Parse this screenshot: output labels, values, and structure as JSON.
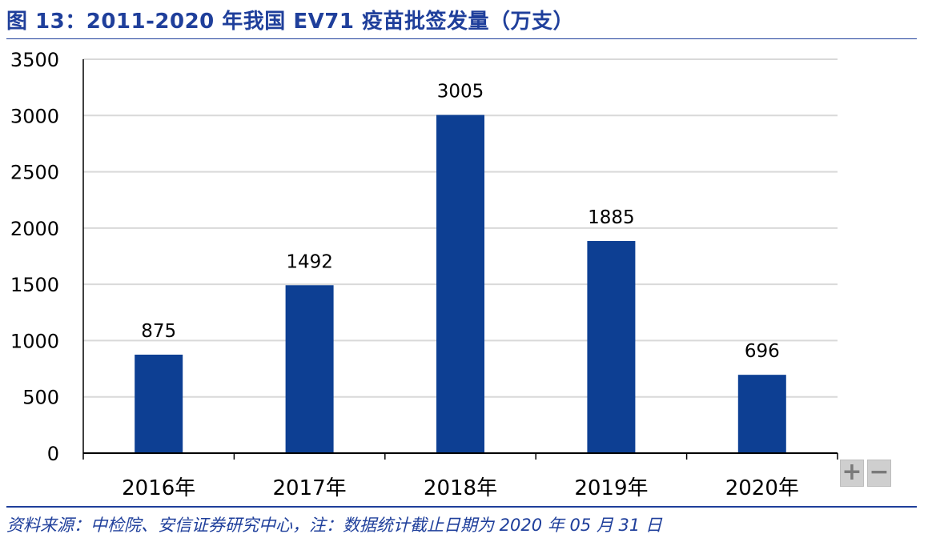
{
  "header": {
    "title": "图 13：2011-2020 年我国 EV71 疫苗批签发量（万支）"
  },
  "footer": {
    "source": "资料来源：中检院、安信证券研究中心，注：数据统计截止日期为 2020 年 05 月 31 日"
  },
  "controls": {
    "zoom_in": "+",
    "zoom_out": "−"
  },
  "chart_data": {
    "type": "bar",
    "categories": [
      "2016年",
      "2017年",
      "2018年",
      "2019年",
      "2020年"
    ],
    "values": [
      875,
      1492,
      3005,
      1885,
      696
    ],
    "data_labels": [
      "875",
      "1492",
      "3005",
      "1885",
      "696"
    ],
    "yticks": [
      "0",
      "500",
      "1000",
      "1500",
      "2000",
      "2500",
      "3000",
      "3500"
    ],
    "ylim": [
      0,
      3500
    ],
    "grid": true,
    "legend": "none",
    "bar_color": "#0d3f93",
    "grid_color": "#d9d9d9",
    "axis_color": "#000000"
  }
}
